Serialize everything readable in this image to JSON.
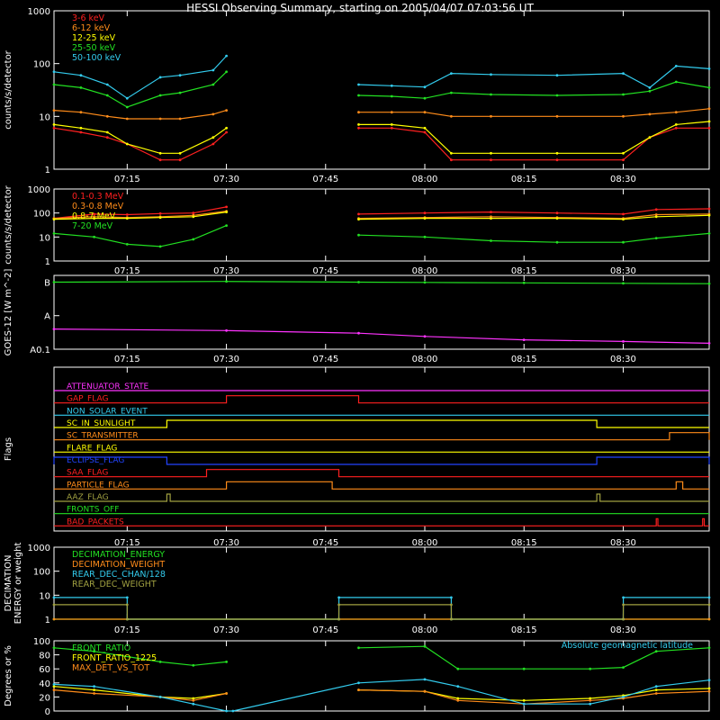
{
  "title": "HESSI Observing Summary, starting on 2005/04/07 07:03:56 UT",
  "colors": {
    "background": "#000000",
    "axes": "#ffffff",
    "red": "#ff2020",
    "orange": "#ff8c1a",
    "yellow": "#ffff00",
    "green": "#22e022",
    "cyan": "#33ccee",
    "magenta": "#ff33ff",
    "blue": "#2244ff",
    "olive": "#a0a040"
  },
  "time_axis": {
    "tick_labels": [
      "07:15",
      "07:30",
      "07:45",
      "08:00",
      "08:15",
      "08:30"
    ]
  },
  "chart_data": [
    {
      "id": "lowE",
      "type": "line",
      "ylabel": "counts/s/detector",
      "yscale": "log",
      "ylim": [
        1,
        1000
      ],
      "yticks": [
        "1",
        "10",
        "100",
        "1000"
      ],
      "legend_position": "top-left",
      "x": [
        "07:03:56",
        "07:08",
        "07:12",
        "07:15",
        "07:20",
        "07:23",
        "07:28",
        "07:30",
        "07:31",
        "07:45",
        "07:50",
        "07:55",
        "08:00",
        "08:04",
        "08:10",
        "08:20",
        "08:30",
        "08:34",
        "08:38",
        "08:43"
      ],
      "series": [
        {
          "name": "3-6 keV",
          "color": "red",
          "values": [
            6,
            5,
            4,
            3,
            1.5,
            1.5,
            3,
            5,
            null,
            null,
            6,
            6,
            5,
            1.5,
            1.5,
            1.5,
            1.5,
            4,
            6,
            6
          ]
        },
        {
          "name": "6-12 keV",
          "color": "orange",
          "values": [
            13,
            12,
            10,
            9,
            9,
            9,
            11,
            13,
            null,
            null,
            12,
            12,
            12,
            10,
            10,
            10,
            10,
            11,
            12,
            14
          ]
        },
        {
          "name": "12-25 keV",
          "color": "yellow",
          "values": [
            7,
            6,
            5,
            3,
            2,
            2,
            4,
            6,
            null,
            null,
            7,
            7,
            6,
            2,
            2,
            2,
            2,
            4,
            7,
            8
          ]
        },
        {
          "name": "25-50 keV",
          "color": "green",
          "values": [
            40,
            35,
            25,
            15,
            25,
            28,
            40,
            70,
            null,
            null,
            25,
            24,
            22,
            28,
            26,
            25,
            26,
            30,
            45,
            35
          ]
        },
        {
          "name": "50-100 keV",
          "color": "cyan",
          "values": [
            70,
            60,
            40,
            22,
            55,
            60,
            75,
            140,
            null,
            null,
            40,
            38,
            36,
            65,
            62,
            60,
            65,
            35,
            90,
            80
          ]
        }
      ]
    },
    {
      "id": "highE",
      "type": "line",
      "ylabel": "counts/s/detector",
      "yscale": "log",
      "ylim": [
        1,
        1000
      ],
      "yticks": [
        "1",
        "10",
        "100",
        "1000"
      ],
      "legend_position": "top-left",
      "x": [
        "07:03:56",
        "07:10",
        "07:15",
        "07:20",
        "07:25",
        "07:30",
        "07:31",
        "07:45",
        "07:50",
        "08:00",
        "08:10",
        "08:20",
        "08:30",
        "08:35",
        "08:43"
      ],
      "series": [
        {
          "name": "0.1-0.3 MeV",
          "color": "red",
          "values": [
            60,
            90,
            85,
            95,
            100,
            180,
            null,
            null,
            90,
            100,
            110,
            100,
            90,
            140,
            150
          ]
        },
        {
          "name": "0.3-0.8 MeV",
          "color": "orange",
          "values": [
            60,
            70,
            65,
            70,
            80,
            120,
            null,
            null,
            60,
            65,
            70,
            65,
            60,
            85,
            90
          ]
        },
        {
          "name": "0.8-7 MeV",
          "color": "yellow",
          "values": [
            55,
            60,
            60,
            65,
            70,
            110,
            null,
            null,
            55,
            60,
            60,
            60,
            55,
            70,
            80
          ]
        },
        {
          "name": "7-20 MeV",
          "color": "green",
          "values": [
            14,
            10,
            5,
            4,
            8,
            30,
            null,
            null,
            12,
            10,
            7,
            6,
            6,
            9,
            14
          ]
        }
      ]
    },
    {
      "id": "goes",
      "type": "line",
      "ylabel": "GOES-12 [W m^-2]",
      "yticks": [
        "A0.1",
        "A",
        "B"
      ],
      "x": [
        "07:03:56",
        "07:30",
        "07:50",
        "08:00",
        "08:15",
        "08:30",
        "08:43"
      ],
      "series": [
        {
          "name": "GOES 1-8 A",
          "color": "green",
          "values": [
            1e-07,
            1.05e-07,
            1e-07,
            9.8e-08,
            9.5e-08,
            9.2e-08,
            9e-08
          ]
        },
        {
          "name": "GOES 0.5-4 A",
          "color": "magenta",
          "values": [
            4e-09,
            3.6e-09,
            3e-09,
            2.4e-09,
            1.9e-09,
            1.7e-09,
            1.5e-09
          ]
        }
      ]
    },
    {
      "id": "flags",
      "type": "line",
      "ylabel": "Flags",
      "flags": [
        {
          "name": "ATTENUATOR_STATE",
          "color": "magenta",
          "segments": []
        },
        {
          "name": "GAP_FLAG",
          "color": "red",
          "segments": [
            [
              "07:30",
              "07:50"
            ]
          ]
        },
        {
          "name": "NON_SOLAR_EVENT",
          "color": "cyan",
          "segments": []
        },
        {
          "name": "SC_IN_SUNLIGHT",
          "color": "yellow",
          "segments": [
            [
              "07:21",
              "08:26"
            ]
          ]
        },
        {
          "name": "SC_TRANSMITTER",
          "color": "orange",
          "segments": [
            [
              "08:37",
              "08:43"
            ]
          ]
        },
        {
          "name": "FLARE_FLAG",
          "color": "yellow",
          "segments": []
        },
        {
          "name": "ECLIPSE_FLAG",
          "color": "blue",
          "segments": [
            [
              "07:03:56",
              "07:21"
            ],
            [
              "08:26",
              "08:43"
            ]
          ]
        },
        {
          "name": "SAA_FLAG",
          "color": "red",
          "segments": [
            [
              "07:27",
              "07:47"
            ]
          ]
        },
        {
          "name": "PARTICLE_FLAG",
          "color": "orange",
          "segments": [
            [
              "07:30",
              "07:46"
            ],
            [
              "08:38",
              "08:39"
            ]
          ]
        },
        {
          "name": "AAZ_FLAG",
          "color": "olive",
          "segments": [
            [
              "07:21",
              "07:21:30"
            ],
            [
              "08:26",
              "08:26:30"
            ]
          ]
        },
        {
          "name": "FRONTS_OFF",
          "color": "green",
          "segments": []
        },
        {
          "name": "BAD_PACKETS",
          "color": "red",
          "segments": [
            [
              "08:35",
              "08:35:15"
            ],
            [
              "08:42",
              "08:42:15"
            ]
          ]
        }
      ]
    },
    {
      "id": "decim",
      "type": "line",
      "ylabel": "DECIMATION ENERGY or weight",
      "yscale": "log",
      "ylim": [
        1,
        1000
      ],
      "yticks": [
        "1",
        "10",
        "100",
        "1000"
      ],
      "legend_position": "top-left",
      "x": [
        "07:03:56",
        "07:15",
        "07:15:01",
        "07:47",
        "07:47:01",
        "08:04",
        "08:04:01",
        "08:30",
        "08:30:01",
        "08:43"
      ],
      "series": [
        {
          "name": "DECIMATION_ENERGY",
          "color": "green",
          "values": [
            1,
            1,
            1,
            1,
            1,
            1,
            1,
            1,
            1,
            1
          ]
        },
        {
          "name": "DECIMATION_WEIGHT",
          "color": "orange",
          "values": [
            1,
            1,
            1,
            1,
            1,
            1,
            1,
            1,
            1,
            1
          ]
        },
        {
          "name": "REAR_DEC_CHAN/128",
          "color": "cyan",
          "values": [
            8,
            8,
            1,
            1,
            8,
            8,
            1,
            1,
            8,
            8
          ]
        },
        {
          "name": "REAR_DEC_WEIGHT",
          "color": "olive",
          "values": [
            4,
            4,
            1,
            1,
            4,
            4,
            1,
            1,
            4,
            4
          ]
        }
      ]
    },
    {
      "id": "orbit",
      "type": "line",
      "ylabel": "Degrees or %",
      "ylim": [
        0,
        100
      ],
      "yticks": [
        "0",
        "20",
        "40",
        "60",
        "80",
        "100"
      ],
      "annotation": "Absolute geomagnetic latitude",
      "x": [
        "07:03:56",
        "07:10",
        "07:20",
        "07:25",
        "07:30",
        "07:31",
        "07:50",
        "08:00",
        "08:05",
        "08:15",
        "08:25",
        "08:30",
        "08:35",
        "08:43"
      ],
      "series": [
        {
          "name": "FRONT_RATIO",
          "color": "green",
          "values": [
            90,
            85,
            70,
            65,
            70,
            null,
            90,
            92,
            60,
            60,
            60,
            62,
            85,
            90
          ]
        },
        {
          "name": "FRONT_RATIO_1225",
          "color": "yellow",
          "values": [
            35,
            30,
            20,
            18,
            25,
            null,
            30,
            28,
            18,
            15,
            18,
            22,
            30,
            32
          ]
        },
        {
          "name": "MAX_DET_VS_TOT",
          "color": "orange",
          "values": [
            30,
            25,
            20,
            15,
            25,
            null,
            30,
            28,
            15,
            10,
            15,
            18,
            25,
            28
          ]
        },
        {
          "name": "Absolute geomagnetic latitude",
          "color": "cyan",
          "values": [
            38,
            35,
            20,
            10,
            0,
            0,
            40,
            45,
            35,
            10,
            10,
            20,
            35,
            44
          ]
        }
      ]
    }
  ]
}
